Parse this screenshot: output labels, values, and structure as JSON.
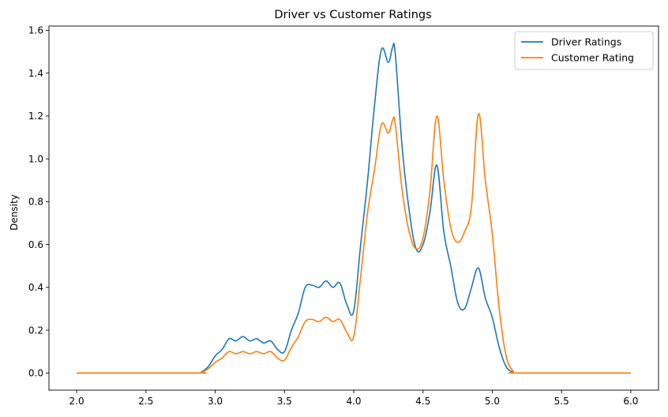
{
  "chart_data": {
    "type": "line",
    "title": "Driver vs Customer Ratings",
    "xlabel": "",
    "ylabel": "Density",
    "xlim": [
      1.8,
      6.2
    ],
    "ylim": [
      -0.08,
      1.62
    ],
    "xticks": [
      2.0,
      2.5,
      3.0,
      3.5,
      4.0,
      4.5,
      5.0,
      5.5,
      6.0
    ],
    "xtick_labels": [
      "2.0",
      "2.5",
      "3.0",
      "3.5",
      "4.0",
      "4.5",
      "5.0",
      "5.5",
      "6.0"
    ],
    "yticks": [
      0.0,
      0.2,
      0.4,
      0.6,
      0.8,
      1.0,
      1.2,
      1.4,
      1.6
    ],
    "ytick_labels": [
      "0.0",
      "0.2",
      "0.4",
      "0.6",
      "0.8",
      "1.0",
      "1.2",
      "1.4",
      "1.6"
    ],
    "grid": false,
    "legend_position": "top-right",
    "series": [
      {
        "name": "Driver Ratings",
        "color": "#1f77b4",
        "x": [
          2.0,
          2.85,
          2.9,
          2.95,
          3.0,
          3.05,
          3.1,
          3.15,
          3.2,
          3.25,
          3.3,
          3.35,
          3.4,
          3.45,
          3.5,
          3.55,
          3.6,
          3.65,
          3.7,
          3.75,
          3.8,
          3.85,
          3.9,
          3.95,
          4.0,
          4.05,
          4.1,
          4.15,
          4.2,
          4.25,
          4.28,
          4.3,
          4.35,
          4.4,
          4.45,
          4.5,
          4.55,
          4.6,
          4.65,
          4.7,
          4.75,
          4.8,
          4.85,
          4.9,
          4.95,
          5.0,
          5.05,
          5.1,
          5.15,
          5.2,
          6.0
        ],
        "y": [
          0.0,
          0.0,
          0.005,
          0.03,
          0.08,
          0.11,
          0.16,
          0.15,
          0.17,
          0.15,
          0.16,
          0.14,
          0.15,
          0.11,
          0.1,
          0.2,
          0.28,
          0.4,
          0.41,
          0.4,
          0.43,
          0.4,
          0.42,
          0.32,
          0.29,
          0.6,
          0.9,
          1.25,
          1.51,
          1.45,
          1.52,
          1.49,
          1.05,
          0.76,
          0.58,
          0.6,
          0.75,
          0.97,
          0.66,
          0.5,
          0.33,
          0.3,
          0.4,
          0.49,
          0.35,
          0.26,
          0.12,
          0.03,
          0.005,
          0.0,
          0.0
        ]
      },
      {
        "name": "Customer Rating",
        "color": "#ff7f0e",
        "x": [
          2.0,
          2.85,
          2.9,
          2.95,
          3.0,
          3.05,
          3.1,
          3.15,
          3.2,
          3.25,
          3.3,
          3.35,
          3.4,
          3.45,
          3.5,
          3.55,
          3.6,
          3.65,
          3.7,
          3.75,
          3.8,
          3.85,
          3.9,
          3.95,
          4.0,
          4.05,
          4.1,
          4.15,
          4.2,
          4.25,
          4.28,
          4.3,
          4.35,
          4.4,
          4.45,
          4.5,
          4.55,
          4.6,
          4.65,
          4.7,
          4.75,
          4.8,
          4.85,
          4.9,
          4.95,
          5.0,
          5.05,
          5.1,
          5.15,
          5.2,
          6.0
        ],
        "y": [
          0.0,
          0.0,
          0.003,
          0.02,
          0.05,
          0.07,
          0.1,
          0.09,
          0.1,
          0.09,
          0.1,
          0.09,
          0.1,
          0.07,
          0.06,
          0.12,
          0.17,
          0.24,
          0.25,
          0.24,
          0.26,
          0.24,
          0.25,
          0.19,
          0.17,
          0.45,
          0.75,
          0.95,
          1.16,
          1.12,
          1.18,
          1.16,
          0.85,
          0.66,
          0.58,
          0.63,
          0.85,
          1.2,
          0.9,
          0.68,
          0.61,
          0.66,
          0.78,
          1.21,
          0.9,
          0.65,
          0.3,
          0.08,
          0.01,
          0.0,
          0.0
        ]
      }
    ]
  }
}
